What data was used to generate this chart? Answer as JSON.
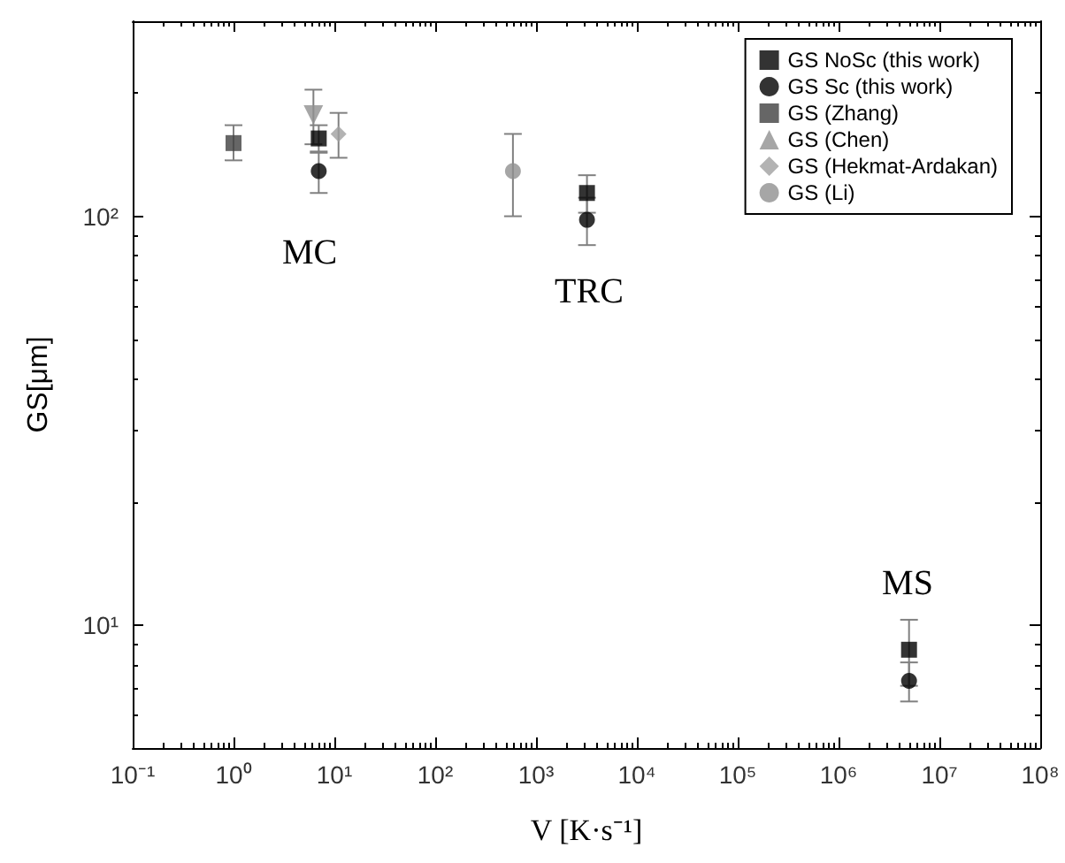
{
  "chart_data": {
    "type": "scatter",
    "xlabel": "V [K·s⁻¹]",
    "ylabel": "GS[μm]",
    "log": "xy",
    "grid": false,
    "legend": "top right",
    "xlim": [
      0.1,
      100000000
    ],
    "ylim": [
      5,
      300
    ],
    "xticks": [
      {
        "value": 0.1,
        "label": "10⁻¹"
      },
      {
        "value": 1,
        "label": "10⁰"
      },
      {
        "value": 10,
        "label": "10¹"
      },
      {
        "value": 100,
        "label": "10²"
      },
      {
        "value": 1000,
        "label": "10³"
      },
      {
        "value": 10000,
        "label": "10⁴"
      },
      {
        "value": 100000,
        "label": "10⁵"
      },
      {
        "value": 1000000,
        "label": "10⁶"
      },
      {
        "value": 10000000,
        "label": "10⁷"
      },
      {
        "value": 100000000,
        "label": "10⁸"
      }
    ],
    "yticks": [
      {
        "value": 10,
        "label": "10¹"
      },
      {
        "value": 100,
        "label": "10²"
      }
    ],
    "series": [
      {
        "name": "GS NoSc (this work)",
        "color": "#000000",
        "marker": "square",
        "x": [
          7,
          3200,
          5000000
        ],
        "values": [
          155,
          114,
          8.7
        ],
        "errors": [
          12,
          12,
          1.6
        ]
      },
      {
        "name": "GS Sc (this work)",
        "color": "#000000",
        "marker": "circle",
        "x": [
          7,
          3200,
          5000000
        ],
        "values": [
          129,
          98,
          7.3
        ],
        "errors": [
          15,
          13,
          0.8
        ]
      },
      {
        "name": "GS (Zhang)",
        "color": "#404040",
        "marker": "square",
        "x": [
          1
        ],
        "values": [
          151
        ],
        "errors": [
          [
            137,
            167
          ]
        ]
      },
      {
        "name": "GS (Chen)",
        "color": "#909090",
        "marker": "triangle",
        "x": [
          6.2
        ],
        "values": [
          177
        ],
        "errors": [
          27
        ]
      },
      {
        "name": "GS (Hekmat-Ardakan)",
        "color": "#a0a0a0",
        "marker": "diamond",
        "x": [
          11
        ],
        "values": [
          159
        ],
        "errors": [
          [
            139,
            179
          ]
        ]
      },
      {
        "name": "GS (Li)",
        "color": "#909090",
        "marker": "circle",
        "x": [
          590
        ],
        "values": [
          129
        ],
        "errors": [
          [
            100,
            159
          ]
        ]
      }
    ],
    "annotations": [
      "MC",
      "TRC",
      "MS"
    ]
  }
}
